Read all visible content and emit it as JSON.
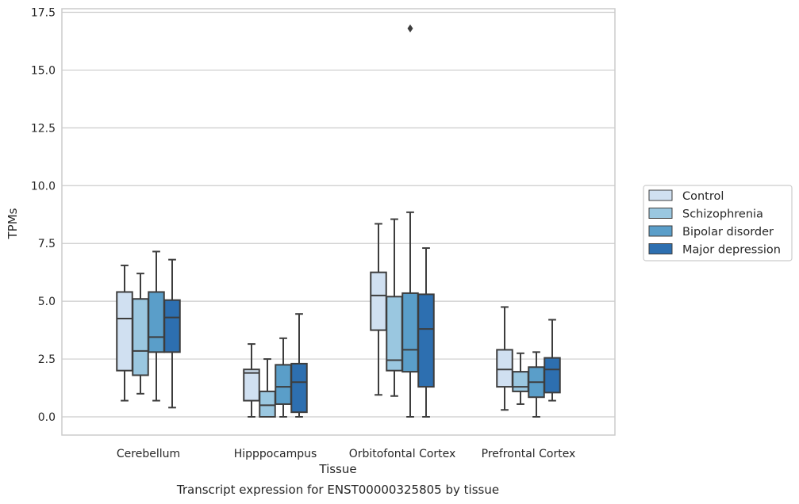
{
  "chart_data": {
    "type": "box",
    "title": "Transcript expression for ENST00000325805 by tissue",
    "xlabel": "Tissue",
    "ylabel": "TPMs",
    "ylim": [
      -0.8,
      17.6
    ],
    "yticks": [
      0.0,
      2.5,
      5.0,
      7.5,
      10.0,
      12.5,
      15.0,
      17.5
    ],
    "ytick_labels": [
      "0.0",
      "2.5",
      "5.0",
      "7.5",
      "10.0",
      "12.5",
      "15.0",
      "17.5"
    ],
    "grid": "horizontal",
    "legend_position": "right",
    "categories": [
      "Cerebellum",
      "Hipppocampus",
      "Orbitofontal Cortex",
      "Prefrontal Cortex"
    ],
    "series": [
      {
        "name": "Control",
        "color": "#d0e0f1",
        "boxes": [
          {
            "whisker_low": 0.7,
            "q1": 2.0,
            "median": 4.25,
            "q3": 5.4,
            "whisker_high": 6.55,
            "outliers": []
          },
          {
            "whisker_low": 0.0,
            "q1": 0.7,
            "median": 1.9,
            "q3": 2.05,
            "whisker_high": 3.15,
            "outliers": []
          },
          {
            "whisker_low": 0.95,
            "q1": 3.75,
            "median": 5.25,
            "q3": 6.25,
            "whisker_high": 8.35,
            "outliers": []
          },
          {
            "whisker_low": 0.3,
            "q1": 1.3,
            "median": 2.05,
            "q3": 2.9,
            "whisker_high": 4.75,
            "outliers": []
          }
        ]
      },
      {
        "name": "Schizophrenia",
        "color": "#9ac7e0",
        "boxes": [
          {
            "whisker_low": 1.0,
            "q1": 1.8,
            "median": 2.85,
            "q3": 5.1,
            "whisker_high": 6.2,
            "outliers": []
          },
          {
            "whisker_low": 0.0,
            "q1": 0.0,
            "median": 0.5,
            "q3": 1.1,
            "whisker_high": 2.5,
            "outliers": []
          },
          {
            "whisker_low": 0.9,
            "q1": 2.0,
            "median": 2.45,
            "q3": 5.2,
            "whisker_high": 8.55,
            "outliers": []
          },
          {
            "whisker_low": 0.55,
            "q1": 1.1,
            "median": 1.3,
            "q3": 1.95,
            "whisker_high": 2.75,
            "outliers": []
          }
        ]
      },
      {
        "name": "Bipolar disorder",
        "color": "#5a9ec9",
        "boxes": [
          {
            "whisker_low": 0.7,
            "q1": 2.8,
            "median": 3.45,
            "q3": 5.4,
            "whisker_high": 7.15,
            "outliers": []
          },
          {
            "whisker_low": 0.0,
            "q1": 0.55,
            "median": 1.3,
            "q3": 2.25,
            "whisker_high": 3.4,
            "outliers": []
          },
          {
            "whisker_low": 0.0,
            "q1": 1.95,
            "median": 2.9,
            "q3": 5.35,
            "whisker_high": 8.85,
            "outliers": [
              16.8
            ]
          },
          {
            "whisker_low": 0.0,
            "q1": 0.85,
            "median": 1.5,
            "q3": 2.15,
            "whisker_high": 2.8,
            "outliers": []
          }
        ]
      },
      {
        "name": "Major depression",
        "color": "#2d6fb0",
        "boxes": [
          {
            "whisker_low": 0.4,
            "q1": 2.8,
            "median": 4.3,
            "q3": 5.05,
            "whisker_high": 6.8,
            "outliers": []
          },
          {
            "whisker_low": 0.0,
            "q1": 0.2,
            "median": 1.5,
            "q3": 2.3,
            "whisker_high": 4.45,
            "outliers": []
          },
          {
            "whisker_low": 0.0,
            "q1": 1.3,
            "median": 3.8,
            "q3": 5.3,
            "whisker_high": 7.3,
            "outliers": []
          },
          {
            "whisker_low": 0.7,
            "q1": 1.05,
            "median": 2.05,
            "q3": 2.55,
            "whisker_high": 4.2,
            "outliers": []
          }
        ]
      }
    ]
  }
}
